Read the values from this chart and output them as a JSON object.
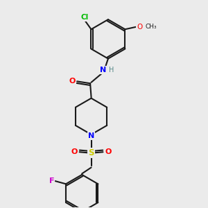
{
  "background_color": "#ebebeb",
  "bond_color": "#1a1a1a",
  "atom_colors": {
    "C": "#1a1a1a",
    "N": "#0000ff",
    "O": "#ff0000",
    "S": "#cccc00",
    "Cl": "#00bb00",
    "F": "#cc00cc",
    "H": "#558888"
  },
  "fig_w": 3.0,
  "fig_h": 3.0,
  "dpi": 100,
  "xlim": [
    0,
    10
  ],
  "ylim": [
    0,
    10
  ]
}
